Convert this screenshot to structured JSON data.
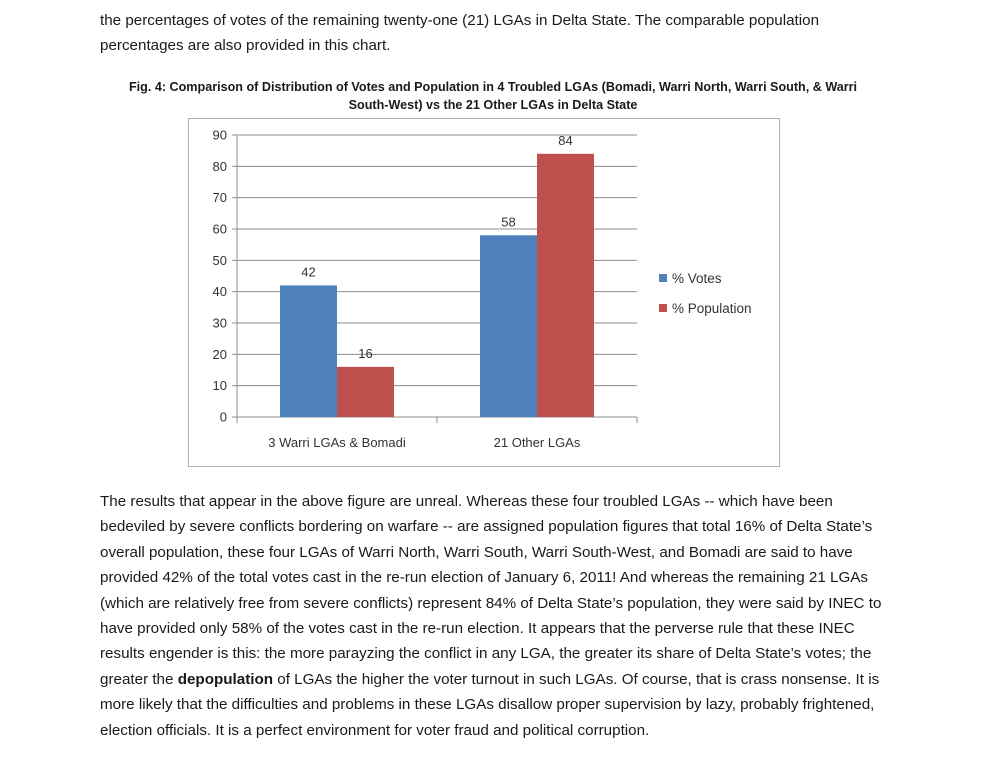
{
  "intro_text": "the percentages of votes of the remaining twenty-one (21) LGAs in Delta State. The comparable population percentages are also provided in this chart.",
  "figure_caption": "Fig. 4: Comparison of Distribution of Votes and Population in 4 Troubled LGAs (Bomadi, Warri North, Warri South, & Warri South-West) vs the 21 Other LGAs in Delta State",
  "chart_data": {
    "type": "bar",
    "title": "",
    "xlabel": "",
    "ylabel": "",
    "categories": [
      "3 Warri LGAs & Bomadi",
      "21 Other LGAs"
    ],
    "series": [
      {
        "name": "% Votes",
        "values": [
          42,
          58
        ],
        "color": "#4f81bd"
      },
      {
        "name": "% Population",
        "values": [
          16,
          84
        ],
        "color": "#c0504d"
      }
    ],
    "ylim": [
      0,
      90
    ],
    "yticks": [
      0,
      10,
      20,
      30,
      40,
      50,
      60,
      70,
      80,
      90
    ],
    "grid": true,
    "legend": "right",
    "data_labels": true
  },
  "body": {
    "part1": "The results that appear in the above figure are unreal. Whereas these four troubled LGAs -- which have been bedeviled by severe conflicts bordering on warfare -- are assigned population figures that total 16% of Delta State’s overall population, these four LGAs of Warri North, Warri South, Warri South-West, and Bomadi are said to have  provided 42% of the total votes cast in the re-run election of January 6, 2011! And whereas the remaining 21 LGAs (which are relatively free from severe conflicts) represent 84% of Delta State’s population, they were said by INEC to have provided only 58% of the votes cast in the re-run election. It appears that the perverse rule that these INEC results engender is this: the more parayzing the conflict in any LGA, the greater its share of Delta State’s votes; the greater the",
    "bold_word": "depopulation",
    "part2": "of LGAs the higher the voter turnout in such LGAs. Of course, that is crass nonsense. It is more likely that the difficulties and problems in these LGAs disallow proper supervision by lazy, probably frightened, election officials. It is a perfect environment for voter fraud and political corruption."
  }
}
